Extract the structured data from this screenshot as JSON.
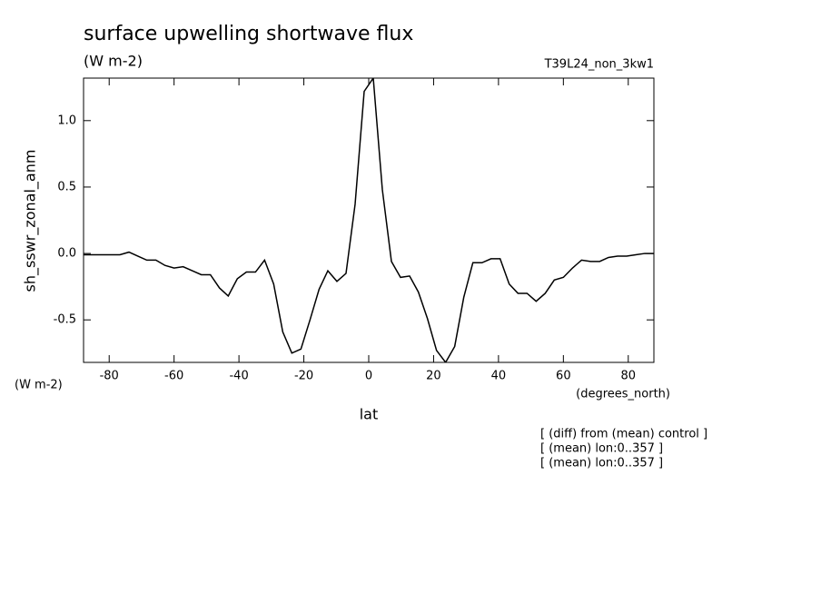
{
  "chart_data": {
    "type": "line",
    "title": "surface upwelling shortwave flux",
    "subtitle": "(W m-2)",
    "run_label": "T39L24_non_3kw1",
    "y_label": "sh_sswr_zonal_anm",
    "y_units": "(W m-2)",
    "x_units": "(degrees_north)",
    "x_label": "lat",
    "notes": [
      "[ (diff) from (mean) control ]",
      "[ (mean) lon:0..357 ]",
      "[ (mean) lon:0..357 ]"
    ],
    "x": [
      -87.9,
      -85.1,
      -82.3,
      -79.5,
      -76.7,
      -73.9,
      -71.2,
      -68.4,
      -65.6,
      -62.8,
      -60.0,
      -57.2,
      -54.4,
      -51.6,
      -48.8,
      -46.0,
      -43.3,
      -40.5,
      -37.7,
      -34.9,
      -32.1,
      -29.3,
      -26.5,
      -23.7,
      -20.9,
      -18.1,
      -15.3,
      -12.6,
      -9.8,
      -7.0,
      -4.2,
      -1.4,
      1.4,
      4.2,
      7.0,
      9.8,
      12.6,
      15.3,
      18.1,
      20.9,
      23.7,
      26.5,
      29.3,
      32.1,
      34.9,
      37.7,
      40.5,
      43.3,
      46.0,
      48.8,
      51.6,
      54.4,
      57.2,
      60.0,
      62.8,
      65.6,
      68.4,
      71.2,
      73.9,
      76.7,
      79.5,
      82.3,
      85.1,
      87.9
    ],
    "series": [
      {
        "color": "#000000",
        "values": [
          -0.01,
          -0.01,
          -0.01,
          -0.01,
          -0.01,
          0.01,
          -0.02,
          -0.05,
          -0.05,
          -0.09,
          -0.11,
          -0.1,
          -0.13,
          -0.16,
          -0.16,
          -0.26,
          -0.32,
          -0.19,
          -0.14,
          -0.14,
          -0.05,
          -0.23,
          -0.59,
          -0.75,
          -0.72,
          -0.5,
          -0.27,
          -0.13,
          -0.21,
          -0.15,
          0.37,
          1.22,
          1.32,
          0.48,
          -0.06,
          -0.18,
          -0.17,
          -0.29,
          -0.49,
          -0.73,
          -0.82,
          -0.7,
          -0.33,
          -0.07,
          -0.07,
          -0.04,
          -0.04,
          -0.23,
          -0.3,
          -0.3,
          -0.36,
          -0.3,
          -0.2,
          -0.18,
          -0.11,
          -0.05,
          -0.06,
          -0.06,
          -0.03,
          -0.02,
          -0.02,
          -0.01,
          0.0,
          0.0
        ]
      }
    ],
    "xlim": [
      -87.9,
      87.9
    ],
    "ylim": [
      -0.82,
      1.32
    ],
    "xticks": [
      -80,
      -60,
      -40,
      -20,
      0,
      20,
      40,
      60,
      80
    ],
    "yticks": [
      -0.5,
      {
        "value": 0,
        "label": "0.0"
      },
      0.5,
      {
        "value": 1,
        "label": "1.0"
      }
    ]
  }
}
